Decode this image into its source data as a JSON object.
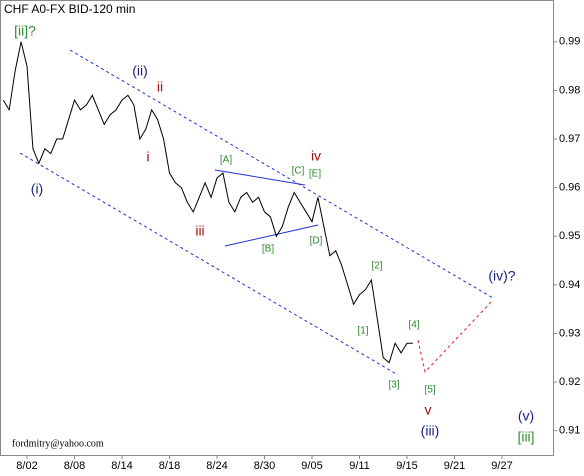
{
  "chart_data": {
    "type": "line",
    "title": "CHF A0-FX BID-120 min",
    "footer": "fordmitry@yahoo.com",
    "color": "#000000",
    "categories": [
      null,
      null,
      null,
      null,
      "8/02",
      null,
      null,
      null,
      null,
      null,
      null,
      null,
      "8/08",
      null,
      null,
      null,
      null,
      null,
      null,
      null,
      "8/14",
      null,
      null,
      null,
      null,
      null,
      null,
      null,
      "8/18",
      null,
      null,
      null,
      null,
      null,
      null,
      null,
      "8/24",
      null,
      null,
      null,
      null,
      null,
      null,
      null,
      "8/30",
      null,
      null,
      null,
      null,
      null,
      null,
      null,
      "9/05",
      null,
      null,
      null,
      null,
      null,
      null,
      null,
      "9/11",
      null,
      null,
      null,
      null,
      null,
      null,
      null,
      "9/15",
      null,
      null,
      null,
      null,
      null,
      null,
      null,
      "9/21",
      null,
      null,
      null,
      null,
      null,
      null,
      null,
      "9/27",
      null,
      null,
      null,
      null,
      null,
      null,
      null,
      null
    ],
    "values": [
      0.978,
      0.976,
      0.984,
      0.99,
      0.985,
      0.968,
      0.965,
      0.968,
      0.967,
      0.97,
      0.97,
      0.974,
      0.978,
      0.976,
      0.977,
      0.979,
      0.976,
      0.973,
      0.975,
      0.976,
      0.978,
      0.979,
      0.977,
      0.97,
      0.972,
      0.976,
      0.974,
      0.97,
      0.963,
      0.961,
      0.96,
      0.957,
      0.955,
      0.958,
      0.961,
      0.958,
      0.962,
      0.963,
      0.957,
      0.955,
      0.958,
      0.959,
      0.957,
      0.958,
      0.955,
      0.954,
      0.95,
      0.952,
      0.956,
      0.959,
      0.957,
      0.955,
      0.953,
      0.958,
      0.952,
      0.946,
      0.947,
      0.944,
      0.94,
      0.936,
      0.938,
      0.939,
      0.941,
      0.933,
      0.925,
      0.924,
      0.928,
      0.926,
      0.928,
      0.928,
      null,
      null,
      null,
      null,
      null,
      null,
      null,
      null,
      null,
      null,
      null,
      null,
      null,
      null,
      null,
      null,
      null,
      null,
      null,
      null,
      null,
      null,
      null
    ],
    "ylim": [
      0.905,
      0.9986
    ],
    "yticks": [
      0.91,
      0.92,
      0.93,
      0.94,
      0.95,
      0.96,
      0.97,
      0.98,
      0.99
    ],
    "annotations": [
      {
        "text": "[ii]?",
        "color": "#2e8b2e"
      },
      {
        "text": "(i)",
        "color": "#1a237e"
      },
      {
        "text": "(ii)",
        "color": "#1a237e"
      },
      {
        "text": "ii",
        "color": "#a01010"
      },
      {
        "text": "i",
        "color": "#a01010"
      },
      {
        "text": "iii",
        "color": "#a01010"
      },
      {
        "text": "[A]",
        "color": "#2e8b2e"
      },
      {
        "text": "[B]",
        "color": "#2e8b2e"
      },
      {
        "text": "[C]",
        "color": "#2e8b2e"
      },
      {
        "text": "iv",
        "color": "#a01010"
      },
      {
        "text": "[E]",
        "color": "#2e8b2e"
      },
      {
        "text": "[D]",
        "color": "#2e8b2e"
      },
      {
        "text": "[2]",
        "color": "#2e8b2e"
      },
      {
        "text": "[1]",
        "color": "#2e8b2e"
      },
      {
        "text": "[4]",
        "color": "#2e8b2e"
      },
      {
        "text": "[3]",
        "color": "#2e8b2e"
      },
      {
        "text": "[5]",
        "color": "#2e8b2e"
      },
      {
        "text": "v",
        "color": "#a01010"
      },
      {
        "text": "(iii)",
        "color": "#1a237e"
      },
      {
        "text": "(iv)?",
        "color": "#1a237e"
      },
      {
        "text": "(v)",
        "color": "#1a237e"
      },
      {
        "text": "[iii]",
        "color": "#2e8b2e"
      }
    ]
  }
}
